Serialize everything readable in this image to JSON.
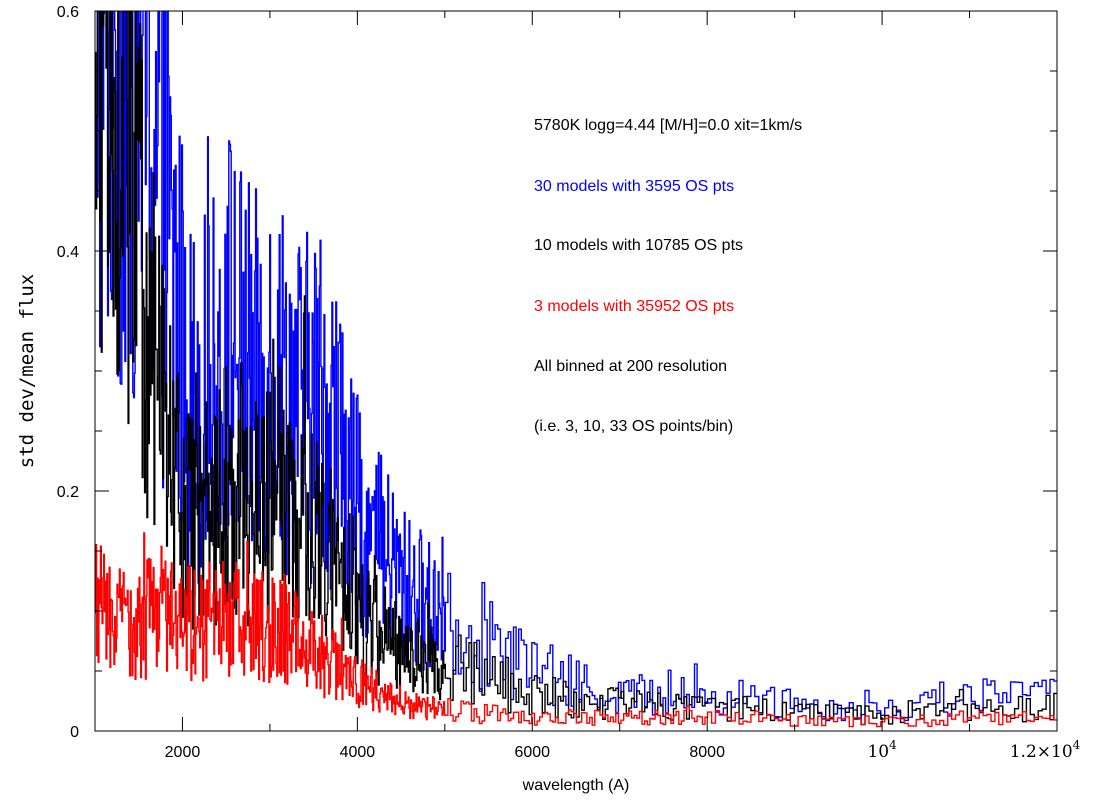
{
  "chart_data": {
    "type": "line",
    "title": "",
    "xlabel": "wavelength (A)",
    "ylabel": "std dev/mean flux",
    "xlim": [
      1000,
      12000
    ],
    "ylim": [
      0,
      0.6
    ],
    "x_ticks": [
      {
        "value": 2000,
        "label": "2000"
      },
      {
        "value": 4000,
        "label": "4000"
      },
      {
        "value": 6000,
        "label": "6000"
      },
      {
        "value": 8000,
        "label": "8000"
      },
      {
        "value": 10000,
        "label": "10",
        "exp": "4"
      },
      {
        "value": 12000,
        "label": "1.2×10",
        "exp": "4"
      }
    ],
    "y_ticks": [
      {
        "value": 0,
        "label": "0"
      },
      {
        "value": 0.2,
        "label": "0.2"
      },
      {
        "value": 0.4,
        "label": "0.4"
      },
      {
        "value": 0.6,
        "label": "0.6"
      }
    ],
    "grid": false,
    "style": "step",
    "annotations": [
      {
        "text": "5780K logg=4.44 [M/H]=0.0 xit=1km/s",
        "color": "#000000"
      },
      {
        "text": "30 models with  3595 OS pts",
        "color": "#0000ff"
      },
      {
        "text": "10 models with 10785 OS pts",
        "color": "#000000"
      },
      {
        "text": "3 models with 35952 OS pts",
        "color": "#ff0000"
      },
      {
        "text": "All binned at 200 resolution",
        "color": "#000000"
      },
      {
        "text": "(i.e. 3, 10, 33 OS points/bin)",
        "color": "#000000"
      }
    ],
    "series": [
      {
        "color": "#0000ff",
        "points": [
          [
            1000,
            0.62
          ],
          [
            1150,
            0.62
          ],
          [
            1300,
            0.6
          ],
          [
            1450,
            0.58
          ],
          [
            1550,
            0.57
          ],
          [
            1650,
            0.52
          ],
          [
            1750,
            0.46
          ],
          [
            1850,
            0.4
          ],
          [
            1950,
            0.34
          ],
          [
            2050,
            0.3
          ],
          [
            2150,
            0.27
          ],
          [
            2250,
            0.28
          ],
          [
            2350,
            0.29
          ],
          [
            2450,
            0.31
          ],
          [
            2550,
            0.34
          ],
          [
            2650,
            0.31
          ],
          [
            2750,
            0.3
          ],
          [
            2850,
            0.29
          ],
          [
            2950,
            0.3
          ],
          [
            3050,
            0.31
          ],
          [
            3150,
            0.29
          ],
          [
            3250,
            0.28
          ],
          [
            3350,
            0.27
          ],
          [
            3450,
            0.27
          ],
          [
            3550,
            0.28
          ],
          [
            3650,
            0.27
          ],
          [
            3750,
            0.25
          ],
          [
            3850,
            0.22
          ],
          [
            3950,
            0.19
          ],
          [
            4050,
            0.17
          ],
          [
            4150,
            0.16
          ],
          [
            4250,
            0.15
          ],
          [
            4350,
            0.14
          ],
          [
            4450,
            0.13
          ],
          [
            4550,
            0.12
          ],
          [
            4650,
            0.11
          ],
          [
            4750,
            0.11
          ],
          [
            4850,
            0.1
          ],
          [
            4950,
            0.11
          ],
          [
            5050,
            0.1
          ],
          [
            5150,
            0.09
          ],
          [
            5300,
            0.085
          ],
          [
            5500,
            0.075
          ],
          [
            5700,
            0.065
          ],
          [
            5900,
            0.055
          ],
          [
            6100,
            0.048
          ],
          [
            6300,
            0.042
          ],
          [
            6500,
            0.038
          ],
          [
            6750,
            0.034
          ],
          [
            7000,
            0.031
          ],
          [
            7250,
            0.03
          ],
          [
            7500,
            0.03
          ],
          [
            7750,
            0.029
          ],
          [
            8000,
            0.028
          ],
          [
            8250,
            0.027
          ],
          [
            8500,
            0.028
          ],
          [
            8750,
            0.027
          ],
          [
            9000,
            0.024
          ],
          [
            9250,
            0.022
          ],
          [
            9500,
            0.02
          ],
          [
            9750,
            0.019
          ],
          [
            10000,
            0.019
          ],
          [
            10250,
            0.02
          ],
          [
            10500,
            0.022
          ],
          [
            10750,
            0.026
          ],
          [
            11000,
            0.029
          ],
          [
            11250,
            0.028
          ],
          [
            11500,
            0.027
          ],
          [
            11750,
            0.03
          ],
          [
            12000,
            0.033
          ]
        ]
      },
      {
        "color": "#000000",
        "points": [
          [
            1000,
            0.52
          ],
          [
            1100,
            0.57
          ],
          [
            1200,
            0.56
          ],
          [
            1300,
            0.52
          ],
          [
            1400,
            0.46
          ],
          [
            1500,
            0.4
          ],
          [
            1600,
            0.35
          ],
          [
            1700,
            0.3
          ],
          [
            1800,
            0.26
          ],
          [
            1900,
            0.22
          ],
          [
            2000,
            0.19
          ],
          [
            2100,
            0.17
          ],
          [
            2200,
            0.17
          ],
          [
            2300,
            0.17
          ],
          [
            2400,
            0.18
          ],
          [
            2500,
            0.2
          ],
          [
            2600,
            0.19
          ],
          [
            2700,
            0.19
          ],
          [
            2800,
            0.18
          ],
          [
            2900,
            0.19
          ],
          [
            3000,
            0.19
          ],
          [
            3100,
            0.18
          ],
          [
            3200,
            0.17
          ],
          [
            3300,
            0.17
          ],
          [
            3400,
            0.16
          ],
          [
            3500,
            0.16
          ],
          [
            3600,
            0.15
          ],
          [
            3700,
            0.14
          ],
          [
            3800,
            0.12
          ],
          [
            3900,
            0.11
          ],
          [
            4000,
            0.1
          ],
          [
            4100,
            0.09
          ],
          [
            4200,
            0.085
          ],
          [
            4300,
            0.08
          ],
          [
            4400,
            0.075
          ],
          [
            4500,
            0.07
          ],
          [
            4650,
            0.065
          ],
          [
            4800,
            0.06
          ],
          [
            5000,
            0.055
          ],
          [
            5200,
            0.05
          ],
          [
            5400,
            0.045
          ],
          [
            5600,
            0.04
          ],
          [
            5800,
            0.035
          ],
          [
            6000,
            0.032
          ],
          [
            6250,
            0.028
          ],
          [
            6500,
            0.026
          ],
          [
            6750,
            0.024
          ],
          [
            7000,
            0.022
          ],
          [
            7250,
            0.021
          ],
          [
            7500,
            0.02
          ],
          [
            7750,
            0.02
          ],
          [
            8000,
            0.019
          ],
          [
            8250,
            0.018
          ],
          [
            8500,
            0.018
          ],
          [
            8750,
            0.018
          ],
          [
            9000,
            0.016
          ],
          [
            9250,
            0.015
          ],
          [
            9500,
            0.014
          ],
          [
            9750,
            0.013
          ],
          [
            10000,
            0.013
          ],
          [
            10250,
            0.014
          ],
          [
            10500,
            0.015
          ],
          [
            10750,
            0.017
          ],
          [
            11000,
            0.02
          ],
          [
            11250,
            0.019
          ],
          [
            11500,
            0.018
          ],
          [
            11750,
            0.019
          ],
          [
            12000,
            0.02
          ]
        ]
      },
      {
        "color": "#ff0000",
        "points": [
          [
            1000,
            0.105
          ],
          [
            1100,
            0.1
          ],
          [
            1200,
            0.098
          ],
          [
            1300,
            0.095
          ],
          [
            1400,
            0.093
          ],
          [
            1500,
            0.092
          ],
          [
            1600,
            0.095
          ],
          [
            1700,
            0.1
          ],
          [
            1800,
            0.1
          ],
          [
            1900,
            0.098
          ],
          [
            2000,
            0.095
          ],
          [
            2100,
            0.09
          ],
          [
            2200,
            0.088
          ],
          [
            2300,
            0.09
          ],
          [
            2400,
            0.092
          ],
          [
            2500,
            0.095
          ],
          [
            2600,
            0.092
          ],
          [
            2700,
            0.09
          ],
          [
            2800,
            0.088
          ],
          [
            2900,
            0.088
          ],
          [
            3000,
            0.088
          ],
          [
            3100,
            0.085
          ],
          [
            3200,
            0.082
          ],
          [
            3300,
            0.078
          ],
          [
            3400,
            0.072
          ],
          [
            3500,
            0.068
          ],
          [
            3600,
            0.062
          ],
          [
            3700,
            0.055
          ],
          [
            3800,
            0.05
          ],
          [
            3900,
            0.046
          ],
          [
            4000,
            0.042
          ],
          [
            4100,
            0.038
          ],
          [
            4200,
            0.034
          ],
          [
            4300,
            0.03
          ],
          [
            4400,
            0.027
          ],
          [
            4500,
            0.024
          ],
          [
            4650,
            0.021
          ],
          [
            4800,
            0.019
          ],
          [
            5000,
            0.017
          ],
          [
            5200,
            0.016
          ],
          [
            5400,
            0.015
          ],
          [
            5600,
            0.014
          ],
          [
            5800,
            0.013
          ],
          [
            6000,
            0.012
          ],
          [
            6250,
            0.012
          ],
          [
            6500,
            0.011
          ],
          [
            6750,
            0.011
          ],
          [
            7000,
            0.011
          ],
          [
            7250,
            0.011
          ],
          [
            7500,
            0.012
          ],
          [
            7750,
            0.011
          ],
          [
            8000,
            0.011
          ],
          [
            8250,
            0.01
          ],
          [
            8500,
            0.01
          ],
          [
            8750,
            0.01
          ],
          [
            9000,
            0.009
          ],
          [
            9250,
            0.009
          ],
          [
            9500,
            0.008
          ],
          [
            9750,
            0.008
          ],
          [
            10000,
            0.008
          ],
          [
            10250,
            0.009
          ],
          [
            10500,
            0.009
          ],
          [
            10750,
            0.01
          ],
          [
            11000,
            0.011
          ],
          [
            11250,
            0.01
          ],
          [
            11500,
            0.01
          ],
          [
            11750,
            0.01
          ],
          [
            12000,
            0.011
          ]
        ]
      }
    ]
  }
}
